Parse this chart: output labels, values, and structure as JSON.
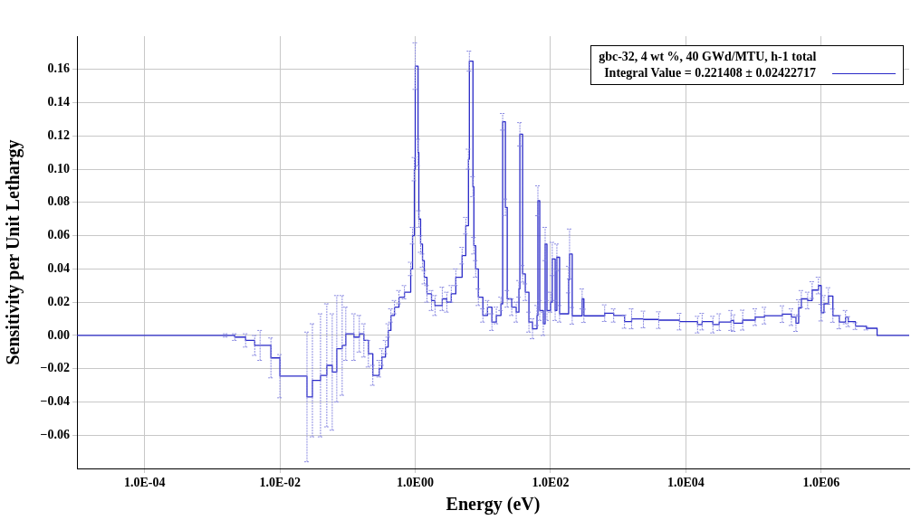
{
  "chart_data": {
    "type": "step",
    "xlabel": "Energy (eV)",
    "ylabel": "Sensitivity per Unit Lethargy",
    "legend_title": "gbc-32, 4 wt %, 40 GWd/MTU,  h-1 total",
    "legend": "top right",
    "grid": true,
    "log": "x",
    "xlim": [
      1e-05,
      20000000
    ],
    "ylim": [
      -0.08,
      0.18
    ],
    "xticks": [
      {
        "value": 0.0001,
        "label": "1.0E-04"
      },
      {
        "value": 0.01,
        "label": "1.0E-02"
      },
      {
        "value": 1,
        "label": "1.0E00"
      },
      {
        "value": 100,
        "label": "1.0E02"
      },
      {
        "value": 10000,
        "label": "1.0E04"
      },
      {
        "value": 1000000,
        "label": "1.0E06"
      }
    ],
    "yticks": [
      {
        "value": -0.06,
        "label": "−0.06"
      },
      {
        "value": -0.04,
        "label": "−0.04"
      },
      {
        "value": -0.02,
        "label": "−0.02"
      },
      {
        "value": 0,
        "label": "0.00"
      },
      {
        "value": 0.02,
        "label": "0.02"
      },
      {
        "value": 0.04,
        "label": "0.04"
      },
      {
        "value": 0.06,
        "label": "0.06"
      },
      {
        "value": 0.08,
        "label": "0.08"
      },
      {
        "value": 0.1,
        "label": "0.10"
      },
      {
        "value": 0.12,
        "label": "0.12"
      },
      {
        "value": 0.14,
        "label": "0.14"
      },
      {
        "value": 0.16,
        "label": "0.16"
      }
    ],
    "series": [
      {
        "name": "Integral Value = 0.221408 ± 0.02422717",
        "color": "#2a2ac8",
        "x": [
          1e-05,
          0.001,
          0.00158,
          0.00215,
          0.00311,
          0.00424,
          0.00509,
          0.00736,
          0.01,
          0.0251,
          0.0302,
          0.0398,
          0.0493,
          0.0593,
          0.0692,
          0.0832,
          0.094,
          0.124,
          0.149,
          0.174,
          0.203,
          0.236,
          0.293,
          0.321,
          0.363,
          0.398,
          0.437,
          0.493,
          0.575,
          0.692,
          0.857,
          0.912,
          0.97,
          1,
          1.1,
          1.13,
          1.2,
          1.28,
          1.36,
          1.49,
          1.74,
          1.96,
          2.51,
          2.93,
          3.41,
          3.98,
          4.93,
          5.59,
          6.12,
          6.31,
          7.13,
          7.36,
          7.82,
          8.57,
          10,
          11.7,
          13.6,
          15.8,
          18.5,
          19.6,
          21.5,
          22.9,
          26.7,
          31.1,
          34.1,
          35.2,
          38.6,
          42.4,
          47.9,
          54.1,
          63.1,
          65,
          69.2,
          78.2,
          83.2,
          88.5,
          100,
          106,
          117,
          124,
          136,
          185,
          191,
          209,
          293,
          311,
          631,
          857,
          1240,
          1580,
          2360,
          3980,
          8070,
          14900,
          17400,
          25100,
          31100,
          46500,
          50900,
          69200,
          106000,
          145000,
          267000,
          363000,
          424000,
          465000,
          509000,
          631000,
          736000,
          912000,
          1000000,
          1100000,
          1280000,
          1490000,
          1850000,
          2290000,
          2510000,
          3210000,
          4650000,
          6710000,
          20000000
        ],
        "values": [
          0,
          0,
          0,
          -0.001,
          -0.003,
          -0.006,
          -0.006,
          -0.0135,
          -0.0245,
          -0.037,
          -0.027,
          -0.024,
          -0.018,
          -0.022,
          -0.008,
          -0.006,
          0.001,
          -0.001,
          0.001,
          -0.003,
          -0.011,
          -0.024,
          -0.02,
          -0.013,
          -0.007,
          0.003,
          0.012,
          0.017,
          0.023,
          0.026,
          0.04,
          0.06,
          0.1,
          0.162,
          0.11,
          0.07,
          0.055,
          0.045,
          0.035,
          0.025,
          0.021,
          0.018,
          0.022,
          0.02,
          0.025,
          0.035,
          0.048,
          0.066,
          0.106,
          0.165,
          0.0895,
          0.054,
          0.04,
          0.023,
          0.012,
          0.017,
          0.008,
          0.012,
          0.019,
          0.1285,
          0.077,
          0.022,
          0.017,
          0.014,
          0.028,
          0.121,
          0.037,
          0.026,
          0.008,
          0.004,
          0.012,
          0.081,
          0.015,
          0.007,
          0.055,
          0.015,
          0.02,
          0.046,
          0.015,
          0.047,
          0.013,
          0.0336,
          0.049,
          0.0118,
          0.022,
          0.0118,
          0.0134,
          0.012,
          0.0083,
          0.01,
          0.0096,
          0.0092,
          0.0083,
          0.0065,
          0.0083,
          0.0065,
          0.008,
          0.009,
          0.0074,
          0.0092,
          0.011,
          0.0119,
          0.0128,
          0.011,
          0.0074,
          0.0165,
          0.022,
          0.021,
          0.0273,
          0.03,
          0.0137,
          0.019,
          0.0237,
          0.0119,
          0.008,
          0.011,
          0.0083,
          0.0056,
          0.0043,
          0,
          0
        ],
        "errors": [
          null,
          null,
          0.001,
          0.002,
          0.004,
          0.006,
          0.009,
          0.012,
          0.013,
          0.039,
          0.034,
          0.037,
          0.037,
          0.035,
          0.032,
          0.03,
          0.016,
          0.014,
          0.011,
          0.01,
          0.008,
          0.006,
          0.005,
          0.005,
          0.004,
          0.004,
          0.004,
          0.004,
          0.004,
          0.004,
          0.004,
          0.005,
          0.007,
          0.014,
          0.008,
          0.005,
          0.005,
          0.004,
          0.004,
          0.005,
          0.006,
          0.006,
          0.007,
          0.006,
          0.005,
          0.005,
          0.005,
          0.005,
          0.006,
          0.006,
          0.006,
          0.005,
          0.005,
          0.005,
          0.004,
          0.004,
          0.005,
          0.005,
          0.004,
          0.005,
          0.005,
          0.005,
          0.005,
          0.006,
          0.005,
          0.007,
          0.005,
          0.005,
          0.006,
          0.006,
          0.006,
          0.009,
          0.006,
          0.007,
          0.01,
          0.006,
          0.006,
          0.01,
          0.006,
          0.008,
          0.005,
          0.008,
          0.015,
          0.005,
          0.006,
          0.004,
          0.005,
          0.004,
          0.004,
          0.006,
          0.005,
          0.005,
          0.005,
          0.005,
          0.005,
          0.005,
          0.005,
          0.006,
          0.005,
          0.006,
          0.005,
          0.005,
          0.005,
          0.005,
          0.005,
          0.005,
          0.005,
          0.005,
          0.005,
          0.005,
          0.005,
          0.005,
          0.005,
          0.004,
          0.004,
          0.004,
          0.003,
          0.002,
          0.001,
          null,
          null
        ]
      }
    ]
  }
}
